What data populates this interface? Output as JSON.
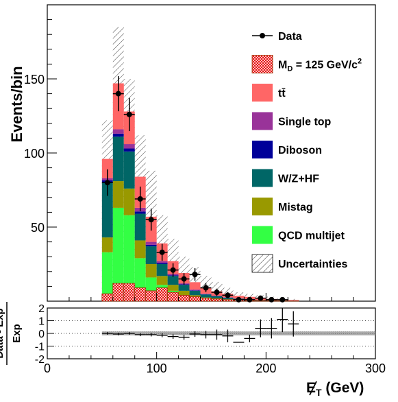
{
  "chart_data": [
    {
      "type": "bar",
      "stacked": true,
      "ylabel": "Events/bin",
      "xlim": [
        0,
        300
      ],
      "ylim": [
        0,
        200
      ],
      "yticks": [
        50,
        100,
        150
      ],
      "bin_width": 10,
      "bin_lows": [
        50,
        60,
        70,
        80,
        90,
        100,
        110,
        120,
        130,
        140,
        150,
        160,
        170,
        180,
        190,
        200,
        210,
        220
      ],
      "series": [
        {
          "name": "QCD multijet",
          "color": "#33ff44",
          "values": [
            33,
            63,
            58,
            29,
            16,
            11,
            7,
            4,
            2,
            1,
            1,
            0.5,
            0.3,
            0.2,
            0.1,
            0.1,
            0.1,
            0.1
          ]
        },
        {
          "name": "Mistag",
          "color": "#999900",
          "values": [
            10,
            18,
            18,
            12,
            9,
            6,
            4,
            3,
            2,
            1.5,
            1,
            0.8,
            0.5,
            0.4,
            0.3,
            0.2,
            0.2,
            0.1
          ]
        },
        {
          "name": "W/Z+HF",
          "color": "#006666",
          "values": [
            37,
            30,
            25,
            18,
            12,
            8,
            6,
            4,
            3,
            2,
            1.3,
            1,
            0.8,
            0.6,
            0.4,
            0.3,
            0.2,
            0.1
          ]
        },
        {
          "name": "Diboson",
          "color": "#000099",
          "values": [
            1.5,
            2,
            2,
            1.5,
            1,
            0.8,
            0.5,
            0.4,
            0.3,
            0.2,
            0.2,
            0.1,
            0.1,
            0.1,
            0.05,
            0.05,
            0.05,
            0.05
          ]
        },
        {
          "name": "Single top",
          "color": "#993399",
          "values": [
            1.5,
            3,
            3,
            2.5,
            2,
            1.2,
            1,
            0.6,
            0.5,
            0.3,
            0.2,
            0.2,
            0.1,
            0.1,
            0.05,
            0.05,
            0.05,
            0.05
          ]
        },
        {
          "name": "tt̄",
          "color": "#ff6666",
          "values": [
            13,
            31,
            22,
            21,
            17,
            12,
            8.5,
            7,
            5,
            4,
            3,
            2.4,
            1.8,
            1.5,
            1,
            0.8,
            0.6,
            0.4
          ]
        }
      ],
      "signal": {
        "name": "M_D = 125 GeV/c^2",
        "values": [
          5,
          12,
          12,
          9,
          7,
          9,
          6,
          4,
          3,
          2,
          1.5,
          1,
          0.8,
          0.5,
          0.4,
          0.3,
          0.2,
          0.1
        ]
      },
      "uncertainty": {
        "name": "Uncertainties",
        "upper": [
          122,
          185,
          150,
          112,
          88,
          58,
          42,
          30,
          23,
          17,
          13,
          9,
          6,
          5,
          4,
          3,
          2,
          1.5
        ]
      },
      "data": {
        "name": "Data",
        "x": [
          55,
          65,
          75,
          85,
          95,
          105,
          115,
          125,
          135,
          145,
          155,
          165,
          175,
          185,
          195,
          205,
          215
        ],
        "y": [
          80,
          140,
          126,
          69,
          55,
          33,
          21,
          15,
          18,
          9,
          6,
          4,
          1,
          1,
          2,
          1,
          1
        ]
      },
      "legend_position": "top-right"
    },
    {
      "type": "scatter",
      "xlabel": "E̸T (GeV)",
      "ylabel_num": "Data - Exp",
      "ylabel_den": "Exp",
      "xlim": [
        0,
        300
      ],
      "ylim": [
        -2,
        2
      ],
      "xticks": [
        0,
        100,
        200,
        300
      ],
      "yticks": [
        -2,
        -1,
        0,
        1,
        2
      ],
      "band_halfwidth": 0.15,
      "band_range": [
        50,
        300
      ],
      "ratio": {
        "x": [
          55,
          65,
          75,
          85,
          95,
          105,
          115,
          125,
          135,
          145,
          155,
          165,
          175,
          185,
          195,
          205,
          215,
          225
        ],
        "y": [
          0.0,
          -0.05,
          0.0,
          -0.1,
          -0.1,
          -0.15,
          -0.25,
          -0.3,
          -0.05,
          -0.1,
          -0.1,
          -0.2,
          -0.7,
          -0.4,
          0.4,
          0.4,
          1.1,
          0.75
        ],
        "err": [
          0.1,
          0.1,
          0.1,
          0.12,
          0.14,
          0.15,
          0.18,
          0.2,
          0.22,
          0.3,
          0.4,
          0.5,
          0.0,
          0.3,
          0.7,
          0.8,
          1.0,
          1.0
        ]
      },
      "grid_lines": [
        -1,
        0,
        1
      ]
    }
  ],
  "labels": {
    "top_ylabel": "Events/bin",
    "bottom_ylabel_num": "Data - Exp",
    "bottom_ylabel_den": "Exp",
    "xlabel_main": "E",
    "xlabel_sub": "T",
    "xlabel_unit": " (GeV)"
  }
}
